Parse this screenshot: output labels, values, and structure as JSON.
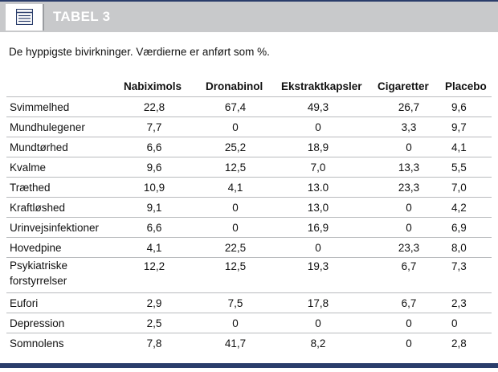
{
  "header": {
    "icon": "table-icon",
    "title": "TABEL 3"
  },
  "caption": "De hyppigste bivirkninger. Værdierne er anført som %.",
  "table": {
    "columns": [
      "Nabiximols",
      "Dronabinol",
      "Ekstraktkapsler",
      "Cigaretter",
      "Placebo"
    ],
    "rows": [
      {
        "label": "Svimmelhed",
        "values": [
          "22,8",
          "67,4",
          "49,3",
          "26,7",
          "9,6"
        ]
      },
      {
        "label": "Mundhulegener",
        "values": [
          "7,7",
          "0",
          "0",
          "3,3",
          "9,7"
        ]
      },
      {
        "label": "Mundtørhed",
        "values": [
          "6,6",
          "25,2",
          "18,9",
          "0",
          "4,1"
        ]
      },
      {
        "label": "Kvalme",
        "values": [
          "9,6",
          "12,5",
          "7,0",
          "13,3",
          "5,5"
        ]
      },
      {
        "label": "Træthed",
        "values": [
          "10,9",
          "4,1",
          "13.0",
          "23,3",
          "7,0"
        ]
      },
      {
        "label": "Kraftløshed",
        "values": [
          "9,1",
          "0",
          "13,0",
          "0",
          "4,2"
        ]
      },
      {
        "label": "Urinvejsinfektioner",
        "values": [
          "6,6",
          "0",
          "16,9",
          "0",
          "6,9"
        ]
      },
      {
        "label": "Hovedpine",
        "values": [
          "4,1",
          "22,5",
          "0",
          "23,3",
          "8,0"
        ]
      },
      {
        "label": "Psykiatriske forstyrrelser",
        "values": [
          "12,2",
          "12,5",
          "19,3",
          "6,7",
          "7,3"
        ]
      },
      {
        "label": "Eufori",
        "values": [
          "2,9",
          "7,5",
          "17,8",
          "6,7",
          "2,3"
        ]
      },
      {
        "label": "Depression",
        "values": [
          "2,5",
          "0",
          "0",
          "0",
          "0"
        ]
      },
      {
        "label": "Somnolens",
        "values": [
          "7,8",
          "41,7",
          "8,2",
          "0",
          "2,8"
        ]
      }
    ]
  },
  "colors": {
    "header_bg": "#c8c9cb",
    "accent_navy": "#2a3d6b",
    "rule": "#b9bbbe"
  }
}
